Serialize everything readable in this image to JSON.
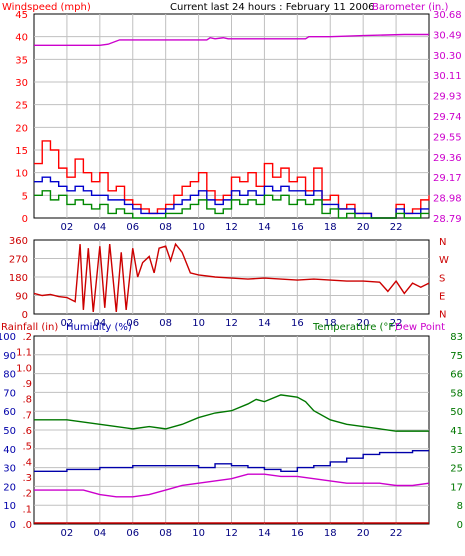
{
  "colors": {
    "wind": "#ff0000",
    "wind_avg": "#0000cc",
    "wind_low": "#008800",
    "barometer": "#cc00cc",
    "direction": "#cc0000",
    "rain": "#cc0000",
    "humidity": "#0000aa",
    "temperature": "#007700",
    "dew_point": "#cc00cc",
    "grid": "#c0c0c0",
    "frame": "#000000"
  },
  "chart_data": [
    {
      "type": "line",
      "title": "Current last 24 hours : February 11 2006",
      "ylabel_left": "Windspeed (mph)",
      "ylabel_right": "Barometer (in.)",
      "x_ticks": [
        "02",
        "04",
        "06",
        "08",
        "10",
        "12",
        "14",
        "16",
        "18",
        "20",
        "22"
      ],
      "ylim": [
        0,
        45
      ],
      "y_ticks": [
        "0",
        "5",
        "10",
        "15",
        "20",
        "25",
        "30",
        "35",
        "40",
        "45"
      ],
      "y2lim": [
        28.79,
        30.68
      ],
      "y2_ticks": [
        "28.79",
        "28.98",
        "29.17",
        "29.36",
        "29.55",
        "29.74",
        "29.93",
        "30.11",
        "30.30",
        "30.49",
        "30.68"
      ],
      "grid": true,
      "series": [
        {
          "axis": "right",
          "role": "barometer",
          "x": [
            0,
            2.5,
            4.0,
            4.5,
            5.2,
            10.5,
            10.7,
            11.0,
            11.5,
            11.8,
            16.5,
            16.7,
            18.0,
            20.0,
            22.5,
            24
          ],
          "values": [
            30.39,
            30.39,
            30.39,
            30.4,
            30.44,
            30.44,
            30.46,
            30.45,
            30.46,
            30.45,
            30.45,
            30.47,
            30.47,
            30.48,
            30.49,
            30.49
          ]
        },
        {
          "axis": "left",
          "role": "gust",
          "x": [
            0,
            0.5,
            1.0,
            1.5,
            2.0,
            2.5,
            3.0,
            3.5,
            4.0,
            4.5,
            5.0,
            5.5,
            6.0,
            6.5,
            7.0,
            7.5,
            8.0,
            8.5,
            9.0,
            9.5,
            10.0,
            10.5,
            11.0,
            11.5,
            12.0,
            12.5,
            13.0,
            13.5,
            14.0,
            14.5,
            15.0,
            15.5,
            16.0,
            16.5,
            17.0,
            17.5,
            18.0,
            18.5,
            19.0,
            19.5,
            20.0,
            20.5,
            21.0,
            21.5,
            22.0,
            22.5,
            23.0,
            23.5,
            24
          ],
          "values": [
            12,
            17,
            15,
            11,
            9,
            13,
            10,
            8,
            10,
            6,
            7,
            4,
            3,
            2,
            1,
            2,
            3,
            5,
            7,
            8,
            10,
            6,
            4,
            5,
            9,
            8,
            10,
            7,
            12,
            9,
            11,
            8,
            9,
            6,
            11,
            4,
            5,
            2,
            3,
            1,
            1,
            0,
            0,
            0,
            3,
            1,
            2,
            4,
            5
          ]
        },
        {
          "axis": "left",
          "role": "average",
          "x": [
            0,
            0.5,
            1.0,
            1.5,
            2.0,
            2.5,
            3.0,
            3.5,
            4.0,
            4.5,
            5.0,
            5.5,
            6.0,
            6.5,
            7.0,
            7.5,
            8.0,
            8.5,
            9.0,
            9.5,
            10.0,
            10.5,
            11.0,
            11.5,
            12.0,
            12.5,
            13.0,
            13.5,
            14.0,
            14.5,
            15.0,
            15.5,
            16.0,
            16.5,
            17.0,
            17.5,
            18.0,
            18.5,
            19.0,
            19.5,
            20.0,
            20.5,
            21.0,
            21.5,
            22.0,
            22.5,
            23.0,
            23.5,
            24
          ],
          "values": [
            8,
            9,
            8,
            7,
            6,
            7,
            6,
            5,
            5,
            4,
            4,
            3,
            2,
            1,
            1,
            1,
            2,
            3,
            4,
            5,
            6,
            4,
            3,
            4,
            6,
            5,
            6,
            5,
            7,
            6,
            7,
            6,
            6,
            5,
            6,
            3,
            3,
            2,
            2,
            1,
            1,
            0,
            0,
            0,
            2,
            1,
            1,
            2,
            2
          ]
        },
        {
          "axis": "left",
          "role": "low",
          "x": [
            0,
            0.5,
            1.0,
            1.5,
            2.0,
            2.5,
            3.0,
            3.5,
            4.0,
            4.5,
            5.0,
            5.5,
            6.0,
            6.5,
            7.0,
            7.5,
            8.0,
            8.5,
            9.0,
            9.5,
            10.0,
            10.5,
            11.0,
            11.5,
            12.0,
            12.5,
            13.0,
            13.5,
            14.0,
            14.5,
            15.0,
            15.5,
            16.0,
            16.5,
            17.0,
            17.5,
            18.0,
            18.5,
            19.0,
            19.5,
            20.0,
            20.5,
            21.0,
            21.5,
            22.0,
            22.5,
            23.0,
            23.5,
            24
          ],
          "values": [
            5,
            6,
            4,
            5,
            3,
            4,
            3,
            2,
            3,
            1,
            2,
            1,
            0,
            0,
            0,
            0,
            1,
            1,
            2,
            3,
            4,
            2,
            1,
            2,
            4,
            3,
            4,
            3,
            5,
            4,
            5,
            3,
            4,
            3,
            4,
            1,
            2,
            0,
            1,
            0,
            0,
            0,
            0,
            0,
            1,
            0,
            0,
            1,
            1
          ]
        }
      ]
    },
    {
      "type": "line",
      "ylim": [
        0,
        360
      ],
      "y_ticks": [
        "0",
        "90",
        "180",
        "270",
        "360"
      ],
      "y2_labels": [
        "N",
        "W",
        "S",
        "E",
        "N"
      ],
      "x_ticks": [
        "02",
        "04",
        "06",
        "08",
        "10",
        "12",
        "14",
        "16",
        "18",
        "20",
        "22"
      ],
      "grid": true,
      "series": [
        {
          "role": "direction",
          "x": [
            0,
            0.5,
            1.0,
            1.5,
            2.0,
            2.5,
            2.8,
            3.0,
            3.3,
            3.6,
            4.0,
            4.3,
            4.6,
            5.0,
            5.3,
            5.6,
            6.0,
            6.3,
            6.6,
            7.0,
            7.3,
            7.6,
            8.0,
            8.3,
            8.6,
            9.0,
            9.5,
            10.0,
            11.0,
            12.0,
            13.0,
            14.0,
            15.0,
            16.0,
            17.0,
            18.0,
            19.0,
            20.0,
            21.0,
            21.5,
            22.0,
            22.5,
            23.0,
            23.5,
            24
          ],
          "values": [
            100,
            90,
            95,
            85,
            80,
            60,
            340,
            20,
            320,
            10,
            330,
            30,
            340,
            10,
            300,
            20,
            320,
            180,
            250,
            280,
            200,
            320,
            330,
            260,
            340,
            300,
            200,
            190,
            180,
            175,
            170,
            175,
            170,
            165,
            170,
            165,
            160,
            160,
            155,
            110,
            160,
            100,
            150,
            130,
            150
          ]
        }
      ]
    },
    {
      "type": "line",
      "ylabel_left": "Rainfall (in)",
      "ylabel_left2": "Humidity (%)",
      "ylabel_right": "Temperature (°F)",
      "ylabel_right2": "Dew Point",
      "x_ticks": [
        "02",
        "04",
        "06",
        "08",
        "10",
        "12",
        "14",
        "16",
        "18",
        "20",
        "22"
      ],
      "rain_ticks": [
        ".0",
        ".1",
        ".2",
        ".3",
        ".4",
        ".5",
        ".6",
        ".7",
        ".8",
        ".9",
        "1.0",
        "1.1",
        ".2"
      ],
      "humidity_ticks": [
        "0",
        "10",
        "20",
        "30",
        "40",
        "50",
        "60",
        "70",
        "80",
        "90",
        "100"
      ],
      "temp_ticks": [
        "0",
        "8",
        "17",
        "25",
        "33",
        "41",
        "50",
        "58",
        "66",
        "75",
        "83"
      ],
      "grid": true,
      "series": [
        {
          "axis": "temperature",
          "role": "temperature",
          "x": [
            0,
            1,
            2,
            3,
            4,
            5,
            6,
            7,
            8,
            9,
            10,
            11,
            12,
            13,
            13.5,
            14,
            15,
            16,
            16.5,
            17,
            18,
            19,
            20,
            21,
            22,
            23,
            24
          ],
          "values": [
            46,
            46,
            46,
            45,
            44,
            43,
            42,
            43,
            42,
            44,
            47,
            49,
            50,
            53,
            55,
            54,
            57,
            56,
            54,
            50,
            46,
            44,
            43,
            42,
            41,
            41,
            41
          ]
        },
        {
          "axis": "humidity",
          "role": "humidity",
          "x": [
            0,
            1,
            2,
            3,
            4,
            5,
            6,
            7,
            8,
            9,
            10,
            11,
            12,
            13,
            14,
            15,
            16,
            17,
            18,
            19,
            20,
            21,
            22,
            23,
            24
          ],
          "values": [
            28,
            28,
            29,
            29,
            30,
            30,
            31,
            31,
            31,
            31,
            30,
            32,
            31,
            30,
            29,
            28,
            30,
            31,
            33,
            35,
            37,
            38,
            38,
            39,
            39
          ]
        },
        {
          "axis": "temperature",
          "role": "dew_point",
          "x": [
            0,
            1,
            2,
            3,
            4,
            5,
            6,
            7,
            8,
            9,
            10,
            11,
            12,
            13,
            14,
            15,
            16,
            17,
            18,
            19,
            20,
            21,
            22,
            23,
            24
          ],
          "values": [
            15,
            15,
            15,
            15,
            13,
            12,
            12,
            13,
            15,
            17,
            18,
            19,
            20,
            22,
            22,
            21,
            21,
            20,
            19,
            18,
            18,
            18,
            17,
            17,
            18
          ]
        },
        {
          "axis": "rain",
          "role": "rainfall",
          "x": [
            0,
            24
          ],
          "values": [
            0,
            0
          ]
        }
      ]
    }
  ]
}
